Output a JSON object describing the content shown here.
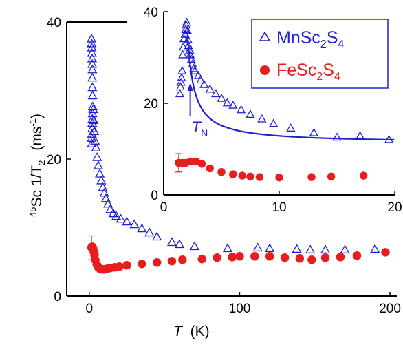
{
  "chart_data": [
    {
      "id": "main",
      "type": "scatter",
      "xlabel_symbol": "T",
      "xlabel_unit": "(K)",
      "ylabel_iso": "45",
      "ylabel_main": "Sc  1/T",
      "ylabel_sub": "2",
      "ylabel_unit": "(ms",
      "ylabel_unit_exp": "-1",
      "ylabel_unit_close": ")",
      "xlim": [
        -15,
        205
      ],
      "ylim": [
        0,
        40
      ],
      "xticks": [
        "0",
        "100",
        "200"
      ],
      "yticks": [
        "0",
        "20",
        "40"
      ],
      "series": [
        {
          "name": "MnSc2S4",
          "marker": "open-triangle",
          "color": "#1e1ed2",
          "points": [
            [
              1.5,
              37.5
            ],
            [
              1.6,
              36.8
            ],
            [
              1.7,
              36.2
            ],
            [
              1.8,
              35.4
            ],
            [
              1.9,
              34.6
            ],
            [
              2.0,
              33.8
            ],
            [
              2.1,
              33.0
            ],
            [
              2.0,
              31.8
            ],
            [
              2.1,
              30.4
            ],
            [
              2.2,
              29.2
            ],
            [
              2.3,
              27.6
            ],
            [
              2.2,
              26.6
            ],
            [
              2.1,
              25.8
            ],
            [
              2.0,
              25.2
            ],
            [
              1.9,
              24.4
            ],
            [
              1.8,
              23.6
            ],
            [
              1.7,
              23.0
            ],
            [
              1.6,
              22.2
            ],
            [
              2.6,
              27.2
            ],
            [
              3.0,
              25.6
            ],
            [
              3.4,
              24.0
            ],
            [
              3.8,
              22.6
            ],
            [
              4.5,
              21.6
            ],
            [
              5.2,
              20.2
            ],
            [
              6.0,
              19.0
            ],
            [
              7.0,
              17.8
            ],
            [
              8.0,
              16.8
            ],
            [
              9.0,
              15.8
            ],
            [
              10.0,
              15.0
            ],
            [
              11.0,
              14.2
            ],
            [
              12.5,
              13.4
            ],
            [
              14.0,
              12.6
            ],
            [
              16.0,
              12.0
            ],
            [
              18.0,
              11.6
            ],
            [
              21.0,
              11.2
            ],
            [
              25.0,
              10.8
            ],
            [
              30.0,
              10.4
            ],
            [
              35.0,
              9.8
            ],
            [
              40.0,
              9.2
            ],
            [
              45.0,
              8.6
            ],
            [
              55.0,
              7.8
            ],
            [
              60.0,
              7.5
            ],
            [
              70.0,
              7.2
            ],
            [
              92.0,
              6.9
            ],
            [
              112.0,
              7.0
            ],
            [
              120.0,
              6.9
            ],
            [
              138.0,
              6.8
            ],
            [
              147.0,
              6.7
            ],
            [
              157.0,
              6.7
            ],
            [
              170.0,
              6.7
            ],
            [
              190.0,
              6.8
            ]
          ]
        },
        {
          "name": "FeSc2S4",
          "marker": "filled-circle",
          "color": "#e81e1e",
          "points": [
            [
              1.5,
              7.1
            ],
            [
              2.0,
              7.2
            ],
            [
              2.5,
              7.0
            ],
            [
              3.0,
              6.5
            ],
            [
              3.5,
              6.0
            ],
            [
              4.0,
              5.3
            ],
            [
              5.0,
              4.6
            ],
            [
              6.0,
              4.2
            ],
            [
              7.0,
              4.0
            ],
            [
              8.0,
              3.9
            ],
            [
              9.0,
              3.9
            ],
            [
              10.0,
              3.9
            ],
            [
              12.0,
              4.0
            ],
            [
              14.0,
              4.1
            ],
            [
              17.0,
              4.2
            ],
            [
              20.0,
              4.3
            ],
            [
              25.0,
              4.5
            ],
            [
              35.0,
              4.7
            ],
            [
              45.0,
              4.9
            ],
            [
              55.0,
              5.1
            ],
            [
              62.0,
              5.3
            ],
            [
              75.0,
              5.4
            ],
            [
              85.0,
              5.6
            ],
            [
              95.0,
              5.7
            ],
            [
              100.0,
              5.8
            ],
            [
              110.0,
              5.8
            ],
            [
              120.0,
              5.8
            ],
            [
              130.0,
              5.6
            ],
            [
              140.0,
              5.5
            ],
            [
              148.0,
              5.3
            ],
            [
              157.0,
              5.6
            ],
            [
              167.0,
              5.7
            ],
            [
              178.0,
              5.9
            ],
            [
              197.0,
              6.4
            ]
          ],
          "error_bars": [
            [
              1.5,
              5.3,
              8.8
            ]
          ]
        }
      ]
    },
    {
      "id": "inset",
      "type": "scatter",
      "xlim": [
        0,
        20
      ],
      "ylim": [
        0,
        40
      ],
      "xticks": [
        "0",
        "10",
        "20"
      ],
      "yticks": [
        "0",
        "20",
        "40"
      ],
      "legend": {
        "position": "top-right",
        "entries": [
          {
            "base": "MnSc",
            "sub1": "2",
            "mid": "S",
            "sub2": "4",
            "color": "#1e1ed2",
            "marker": "open-triangle"
          },
          {
            "base": "FeSc",
            "sub1": "2",
            "mid": "S",
            "sub2": "4",
            "color": "#e81e1e",
            "marker": "filled-circle"
          }
        ]
      },
      "annotation": {
        "symbol": "T",
        "sub": "N",
        "x": 2.3,
        "color": "#1e1ed2"
      },
      "series": [
        {
          "name": "MnSc2S4",
          "marker": "open-triangle",
          "color": "#1e1ed2",
          "points": [
            [
              1.4,
              22.0
            ],
            [
              1.45,
              23.5
            ],
            [
              1.5,
              24.5
            ],
            [
              1.55,
              25.5
            ],
            [
              1.6,
              27.0
            ],
            [
              1.65,
              30.5
            ],
            [
              1.7,
              32.2
            ],
            [
              1.75,
              34.0
            ],
            [
              1.85,
              35.0
            ],
            [
              1.9,
              36.0
            ],
            [
              1.95,
              37.0
            ],
            [
              2.0,
              37.6
            ],
            [
              2.05,
              35.8
            ],
            [
              2.1,
              33.8
            ],
            [
              2.15,
              32.5
            ],
            [
              2.25,
              31.5
            ],
            [
              2.3,
              30.5
            ],
            [
              2.4,
              29.5
            ],
            [
              2.5,
              28.5
            ],
            [
              2.6,
              27.5
            ],
            [
              2.7,
              27.0
            ],
            [
              3.0,
              26.0
            ],
            [
              3.2,
              25.0
            ],
            [
              3.5,
              24.0
            ],
            [
              4.0,
              23.0
            ],
            [
              4.5,
              22.0
            ],
            [
              5.0,
              21.0
            ],
            [
              5.5,
              20.0
            ],
            [
              6.0,
              19.5
            ],
            [
              6.7,
              18.5
            ],
            [
              7.5,
              17.5
            ],
            [
              8.5,
              16.5
            ],
            [
              9.5,
              15.5
            ],
            [
              11.0,
              14.5
            ],
            [
              13.0,
              13.5
            ],
            [
              15.0,
              12.5
            ],
            [
              17.0,
              12.8
            ],
            [
              19.5,
              12.0
            ]
          ],
          "fit_curve": "a / (T - T0) + b"
        },
        {
          "name": "FeSc2S4",
          "marker": "filled-circle",
          "color": "#e81e1e",
          "points": [
            [
              1.3,
              7.0
            ],
            [
              1.6,
              7.0
            ],
            [
              1.9,
              7.0
            ],
            [
              2.3,
              7.3
            ],
            [
              2.8,
              7.3
            ],
            [
              3.3,
              6.8
            ],
            [
              4.0,
              5.8
            ],
            [
              5.0,
              5.0
            ],
            [
              6.0,
              4.5
            ],
            [
              6.8,
              4.2
            ],
            [
              7.5,
              4.0
            ],
            [
              8.3,
              3.9
            ],
            [
              10.0,
              3.8
            ],
            [
              12.8,
              3.9
            ],
            [
              14.5,
              4.0
            ],
            [
              17.3,
              4.2
            ]
          ],
          "error_bars": [
            [
              1.3,
              5.0,
              9.0
            ]
          ]
        }
      ]
    }
  ]
}
